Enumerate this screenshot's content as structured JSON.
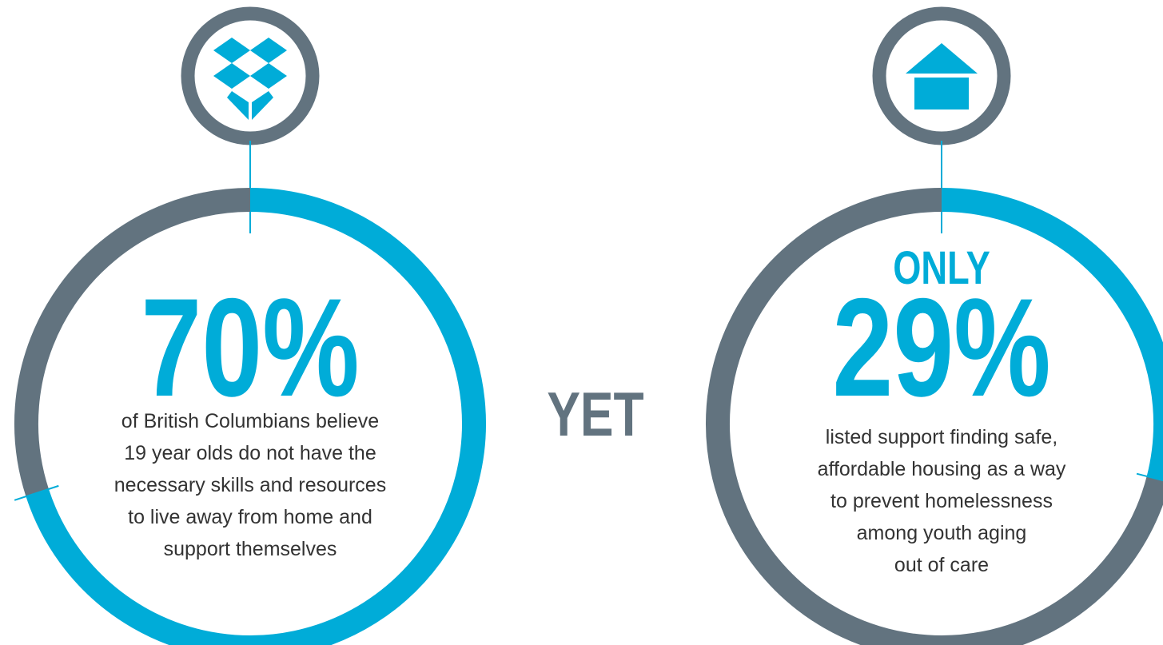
{
  "stats": [
    {
      "value": 70,
      "value_label": "70%",
      "lines": [
        "of British Columbians believe",
        "19 year olds do not have the",
        "necessary skills and resources",
        "to live away from home and",
        "support themselves"
      ]
    },
    {
      "prefix": "ONLY",
      "value": 29,
      "value_label": "29%",
      "lines": [
        "listed support finding safe,",
        "affordable housing as a way",
        "to prevent homelessness",
        "among youth aging",
        "out of care"
      ]
    }
  ],
  "connector": "YET"
}
